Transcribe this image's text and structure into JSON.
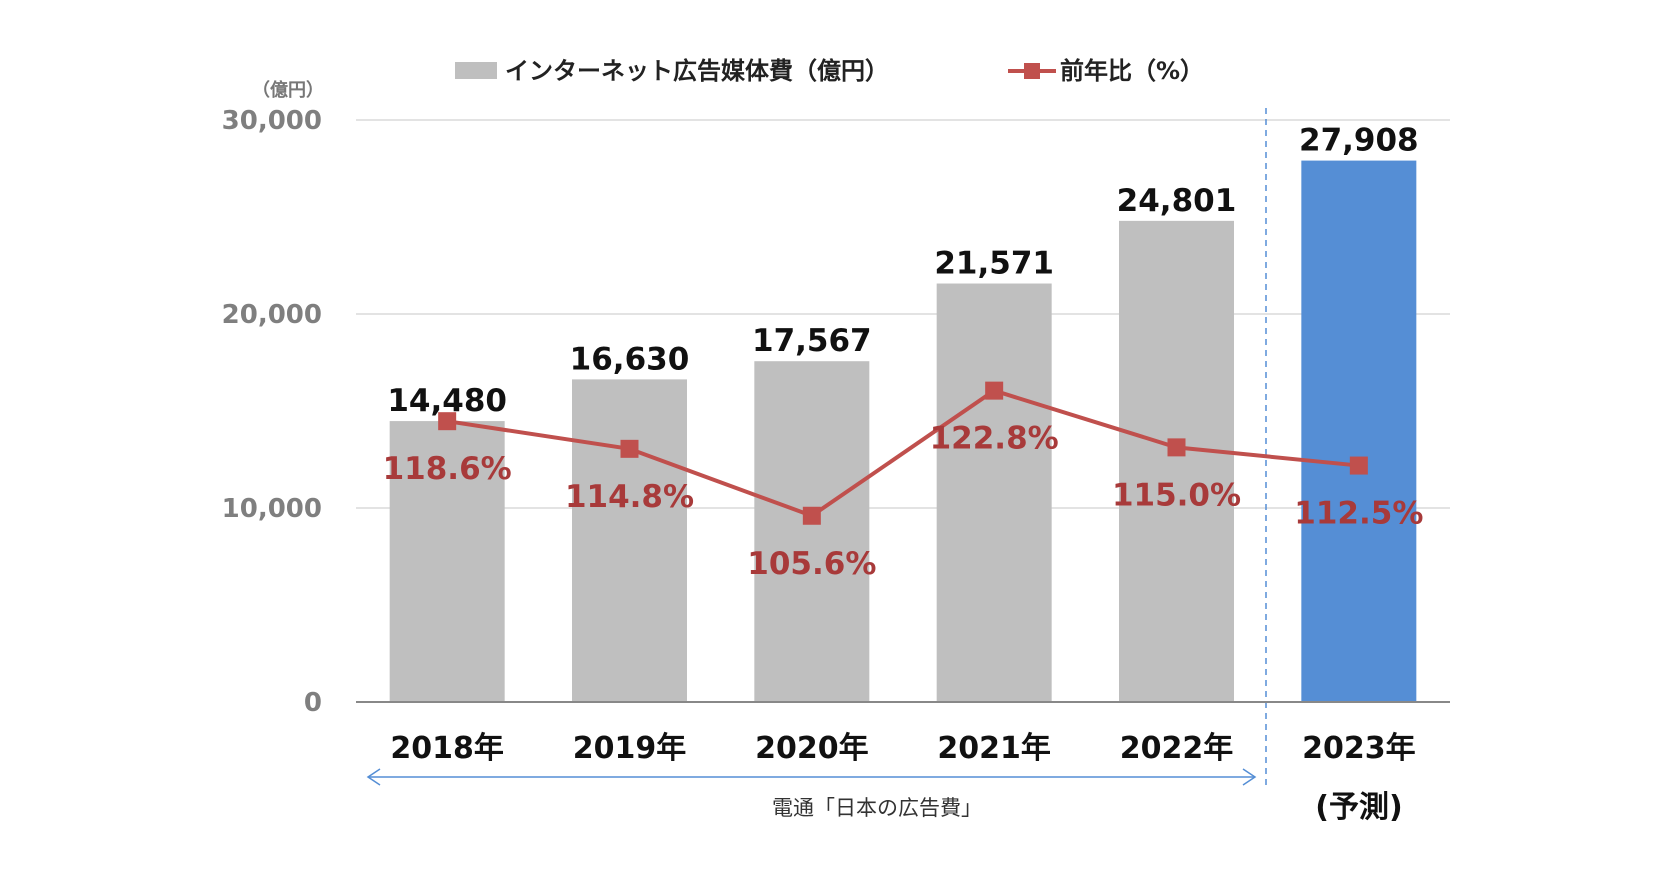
{
  "chart_data": {
    "type": "bar",
    "unit_label": "（億円）",
    "categories": [
      "2018年",
      "2019年",
      "2020年",
      "2021年",
      "2022年",
      "2023年"
    ],
    "forecast_note": "(予測)",
    "ylim": [
      0,
      30000
    ],
    "yticks": [
      "0",
      "10,000",
      "20,000",
      "30,000"
    ],
    "ytick_values": [
      0,
      10000,
      20000,
      30000
    ],
    "series": [
      {
        "name": "インターネット広告媒体費（億円）",
        "type": "bar",
        "values": [
          14480,
          16630,
          17567,
          21571,
          24801,
          27908
        ],
        "labels": [
          "14,480",
          "16,630",
          "17,567",
          "21,571",
          "24,801",
          "27,908"
        ],
        "color": "#bfbfbf",
        "forecast_color": "#558ed5"
      },
      {
        "name": "前年比（%）",
        "type": "line",
        "values": [
          118.6,
          114.8,
          105.6,
          122.8,
          115.0,
          112.5
        ],
        "labels": [
          "118.6%",
          "114.8%",
          "105.6%",
          "122.8%",
          "115.0%",
          "112.5%"
        ],
        "color": "#c0504d",
        "label_color": "#a83a3a"
      }
    ],
    "source_note": "電通「日本の広告費」",
    "grid": true,
    "legend": "top"
  }
}
